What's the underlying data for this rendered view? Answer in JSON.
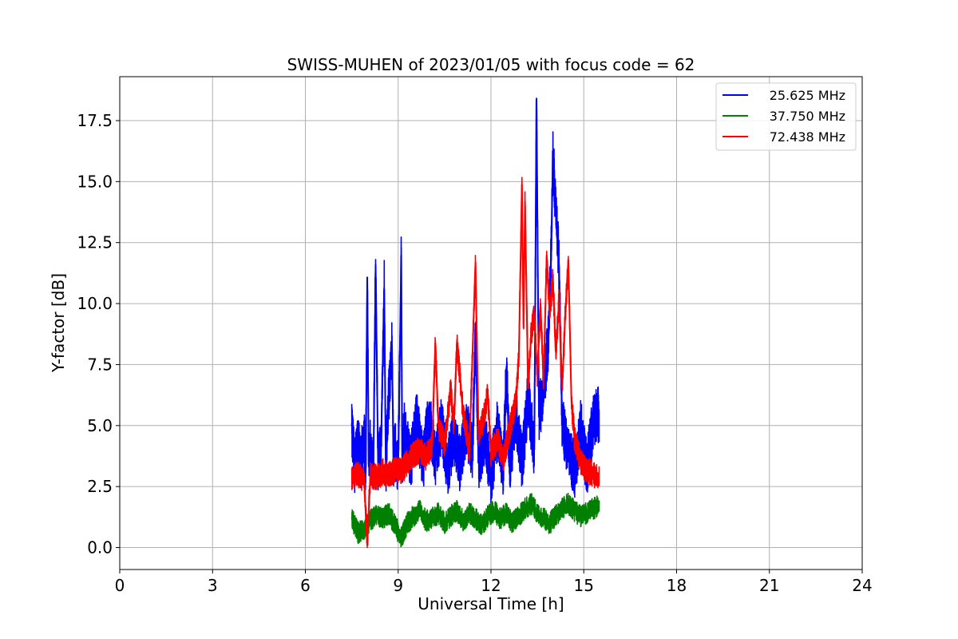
{
  "chart_data": {
    "type": "line",
    "title": "SWISS-MUHEN of 2023/01/05 with focus code = 62",
    "xlabel": "Universal Time [h]",
    "ylabel": "Y-factor [dB]",
    "xlim": [
      0,
      24
    ],
    "ylim": [
      -0.9,
      19.3
    ],
    "xticks": [
      0,
      3,
      6,
      9,
      12,
      15,
      18,
      21,
      24
    ],
    "yticks": [
      0.0,
      2.5,
      5.0,
      7.5,
      10.0,
      12.5,
      15.0,
      17.5
    ],
    "xtick_labels": [
      "0",
      "3",
      "6",
      "9",
      "12",
      "15",
      "18",
      "21",
      "24"
    ],
    "ytick_labels": [
      "0.0",
      "2.5",
      "5.0",
      "7.5",
      "10.0",
      "12.5",
      "15.0",
      "17.5"
    ],
    "grid": true,
    "legend_position": "top-right",
    "series": [
      {
        "name": "25.625 MHz",
        "color": "#0000ff",
        "x": [
          7.5,
          7.6,
          7.7,
          7.8,
          7.9,
          7.95,
          8.0,
          8.05,
          8.1,
          8.2,
          8.27,
          8.35,
          8.45,
          8.55,
          8.6,
          8.7,
          8.8,
          8.85,
          8.9,
          9.0,
          9.1,
          9.13,
          9.2,
          9.4,
          9.6,
          9.8,
          10.0,
          10.2,
          10.4,
          10.6,
          10.8,
          11.0,
          11.2,
          11.4,
          11.5,
          11.6,
          11.8,
          12.0,
          12.2,
          12.4,
          12.5,
          12.6,
          12.8,
          13.0,
          13.2,
          13.4,
          13.47,
          13.55,
          13.7,
          13.85,
          13.95,
          14.0,
          14.1,
          14.2,
          14.3,
          14.5,
          14.7,
          14.9,
          15.1,
          15.3,
          15.5
        ],
        "y": [
          5.1,
          3.2,
          4.6,
          3.4,
          4.8,
          3.0,
          11.1,
          3.3,
          4.2,
          3.1,
          11.6,
          3.5,
          4.3,
          10.6,
          3.2,
          6.3,
          8.3,
          3.4,
          4.1,
          3.2,
          12.0,
          3.6,
          4.8,
          3.5,
          5.2,
          3.4,
          5.5,
          3.6,
          5.0,
          3.2,
          4.7,
          3.4,
          5.0,
          3.8,
          8.7,
          3.5,
          4.6,
          2.9,
          4.8,
          3.2,
          7.4,
          3.3,
          5.4,
          3.5,
          6.2,
          4.0,
          18.4,
          5.5,
          6.5,
          8.4,
          12.3,
          16.0,
          13.8,
          11.5,
          5.2,
          3.8,
          3.2,
          4.9,
          3.3,
          5.1,
          5.5
        ]
      },
      {
        "name": "37.750 MHz",
        "color": "#008000",
        "x": [
          7.5,
          7.7,
          7.9,
          8.1,
          8.3,
          8.5,
          8.7,
          8.9,
          9.1,
          9.3,
          9.5,
          9.7,
          9.9,
          10.1,
          10.3,
          10.5,
          10.7,
          10.9,
          11.1,
          11.3,
          11.5,
          11.7,
          11.9,
          12.1,
          12.3,
          12.5,
          12.7,
          12.9,
          13.1,
          13.3,
          13.5,
          13.7,
          13.9,
          14.1,
          14.3,
          14.5,
          14.7,
          14.9,
          15.1,
          15.3,
          15.5
        ],
        "y": [
          1.2,
          0.6,
          0.8,
          1.1,
          1.3,
          1.2,
          1.4,
          0.9,
          0.4,
          1.0,
          1.3,
          1.5,
          1.1,
          1.2,
          1.4,
          1.0,
          1.3,
          1.5,
          1.1,
          1.4,
          1.2,
          0.9,
          1.3,
          1.5,
          1.2,
          1.4,
          1.0,
          1.3,
          1.6,
          1.8,
          1.4,
          1.2,
          1.0,
          1.3,
          1.6,
          1.8,
          1.5,
          1.3,
          1.4,
          1.6,
          1.7
        ]
      },
      {
        "name": "72.438 MHz",
        "color": "#ff0000",
        "x": [
          7.5,
          7.7,
          7.9,
          8.0,
          8.1,
          8.3,
          8.5,
          8.7,
          8.9,
          9.1,
          9.3,
          9.5,
          9.7,
          9.9,
          10.1,
          10.2,
          10.3,
          10.5,
          10.7,
          10.8,
          10.9,
          11.1,
          11.3,
          11.5,
          11.6,
          11.8,
          11.9,
          12.0,
          12.2,
          12.4,
          12.6,
          12.8,
          12.9,
          13.0,
          13.05,
          13.1,
          13.2,
          13.3,
          13.4,
          13.5,
          13.6,
          13.7,
          13.8,
          13.9,
          14.0,
          14.1,
          14.2,
          14.3,
          14.4,
          14.5,
          14.6,
          14.7,
          14.9,
          15.1,
          15.3,
          15.5
        ],
        "y": [
          2.9,
          3.0,
          2.8,
          0.1,
          3.0,
          2.9,
          3.1,
          3.0,
          3.2,
          3.1,
          3.5,
          3.8,
          4.0,
          3.7,
          4.2,
          8.4,
          5.0,
          4.2,
          6.5,
          5.0,
          8.4,
          5.5,
          4.0,
          11.7,
          4.5,
          5.5,
          6.3,
          3.8,
          4.5,
          3.6,
          4.8,
          6.0,
          7.8,
          14.9,
          9.0,
          14.2,
          6.5,
          8.8,
          9.5,
          7.0,
          10.0,
          6.8,
          12.0,
          9.5,
          11.0,
          8.0,
          10.2,
          6.5,
          9.5,
          11.8,
          6.0,
          4.5,
          3.5,
          3.2,
          3.0,
          2.8
        ]
      }
    ]
  }
}
